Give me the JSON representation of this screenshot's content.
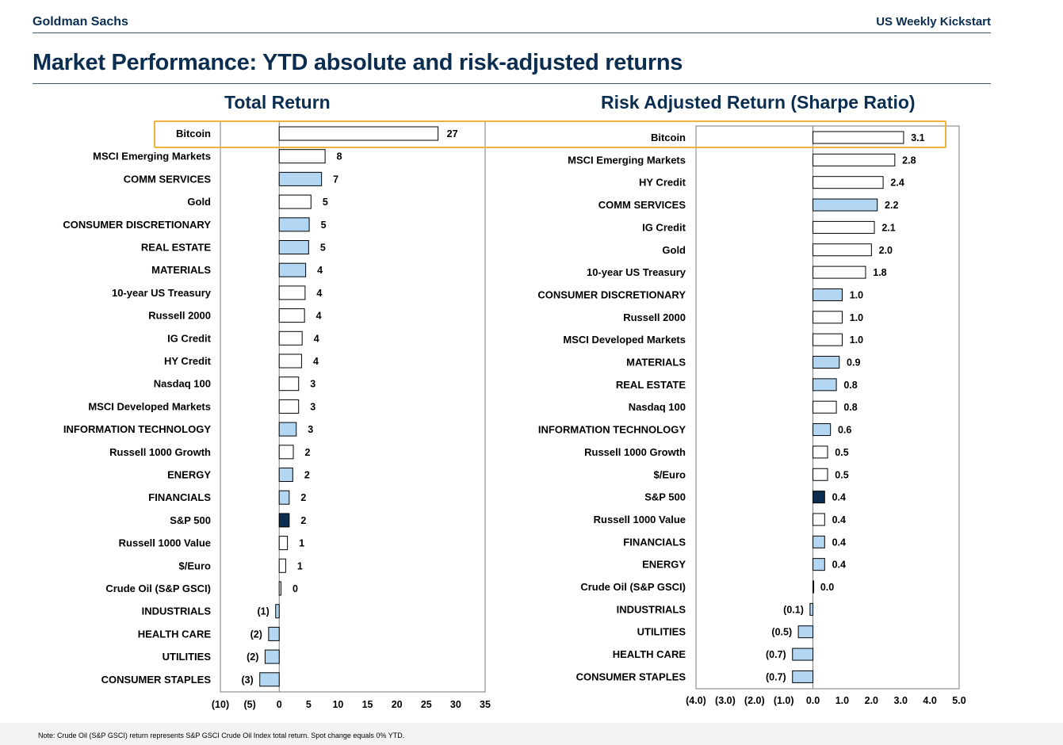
{
  "header": {
    "brand": "Goldman Sachs",
    "report_name": "US Weekly Kickstart",
    "page_title": "Market Performance: YTD absolute and risk-adjusted returns"
  },
  "footnote": "Note: Crude Oil (S&P GSCI) return represents S&P GSCI Crude Oil Index total return. Spot change equals 0% YTD.",
  "colors": {
    "title_navy": "#0b2e50",
    "sector_bar": "#b3d7f2",
    "sp500_bar": "#0b2e50",
    "other_bar": "#ffffff",
    "highlight": "#f0b23a"
  },
  "chart_data": [
    {
      "type": "bar",
      "orientation": "horizontal",
      "title": "Total Return",
      "xlim": [
        -10,
        35
      ],
      "ticks": [
        -10,
        -5,
        0,
        5,
        10,
        15,
        20,
        25,
        30,
        35
      ],
      "tick_labels": [
        "(10)",
        "(5)",
        "0",
        "5",
        "10",
        "15",
        "20",
        "25",
        "30",
        "35"
      ],
      "categories": [
        "Bitcoin",
        "MSCI Emerging Markets",
        "COMM SERVICES",
        "Gold",
        "CONSUMER DISCRETIONARY",
        "REAL ESTATE",
        "MATERIALS",
        "10-year US Treasury",
        "Russell 2000",
        "IG Credit",
        "HY Credit",
        "Nasdaq 100",
        "MSCI Developed Markets",
        "INFORMATION TECHNOLOGY",
        "Russell 1000 Growth",
        "ENERGY",
        "FINANCIALS",
        "S&P 500",
        "Russell 1000 Value",
        "$/Euro",
        "Crude Oil (S&P GSCI)",
        "INDUSTRIALS",
        "HEALTH CARE",
        "UTILITIES",
        "CONSUMER STAPLES"
      ],
      "values": [
        27,
        7.8,
        7.2,
        5.4,
        5.1,
        5.0,
        4.5,
        4.4,
        4.3,
        3.9,
        3.8,
        3.3,
        3.3,
        2.9,
        2.4,
        2.3,
        1.7,
        1.7,
        1.4,
        1.1,
        0.3,
        -0.6,
        -1.8,
        -2.4,
        -3.3
      ],
      "value_labels": [
        "27",
        "8",
        "7",
        "5",
        "5",
        "5",
        "4",
        "4",
        "4",
        "4",
        "4",
        "3",
        "3",
        "3",
        "2",
        "2",
        "2",
        "2",
        "1",
        "1",
        "0",
        "(1)",
        "(2)",
        "(2)",
        "(3)"
      ],
      "bar_kind": [
        "other",
        "other",
        "sector",
        "other",
        "sector",
        "sector",
        "sector",
        "other",
        "other",
        "other",
        "other",
        "other",
        "other",
        "sector",
        "other",
        "sector",
        "sector",
        "sp500",
        "other",
        "other",
        "other",
        "sector",
        "sector",
        "sector",
        "sector"
      ]
    },
    {
      "type": "bar",
      "orientation": "horizontal",
      "title": "Risk Adjusted Return (Sharpe Ratio)",
      "xlim": [
        -4,
        5
      ],
      "ticks": [
        -4,
        -3,
        -2,
        -1,
        0,
        1,
        2,
        3,
        4,
        5
      ],
      "tick_labels": [
        "(4.0)",
        "(3.0)",
        "(2.0)",
        "(1.0)",
        "0.0",
        "1.0",
        "2.0",
        "3.0",
        "4.0",
        "5.0"
      ],
      "categories": [
        "Bitcoin",
        "MSCI Emerging Markets",
        "HY Credit",
        "COMM SERVICES",
        "IG Credit",
        "Gold",
        "10-year US Treasury",
        "CONSUMER DISCRETIONARY",
        "Russell 2000",
        "MSCI Developed Markets",
        "MATERIALS",
        "REAL ESTATE",
        "Nasdaq 100",
        "INFORMATION TECHNOLOGY",
        "Russell 1000 Growth",
        "$/Euro",
        "S&P 500",
        "Russell 1000 Value",
        "FINANCIALS",
        "ENERGY",
        "Crude Oil (S&P GSCI)",
        "INDUSTRIALS",
        "UTILITIES",
        "HEALTH CARE",
        "CONSUMER STAPLES"
      ],
      "values": [
        3.1,
        2.8,
        2.4,
        2.2,
        2.1,
        2.0,
        1.8,
        1.0,
        1.0,
        1.0,
        0.9,
        0.8,
        0.8,
        0.6,
        0.5,
        0.5,
        0.4,
        0.4,
        0.4,
        0.4,
        0.0,
        -0.1,
        -0.5,
        -0.7,
        -0.7
      ],
      "value_labels": [
        "3.1",
        "2.8",
        "2.4",
        "2.2",
        "2.1",
        "2.0",
        "1.8",
        "1.0",
        "1.0",
        "1.0",
        "0.9",
        "0.8",
        "0.8",
        "0.6",
        "0.5",
        "0.5",
        "0.4",
        "0.4",
        "0.4",
        "0.4",
        "0.0",
        "(0.1)",
        "(0.5)",
        "(0.7)",
        "(0.7)"
      ],
      "bar_kind": [
        "other",
        "other",
        "other",
        "sector",
        "other",
        "other",
        "other",
        "sector",
        "other",
        "other",
        "sector",
        "sector",
        "other",
        "sector",
        "other",
        "other",
        "sp500",
        "other",
        "sector",
        "sector",
        "other",
        "sector",
        "sector",
        "sector",
        "sector"
      ]
    }
  ]
}
